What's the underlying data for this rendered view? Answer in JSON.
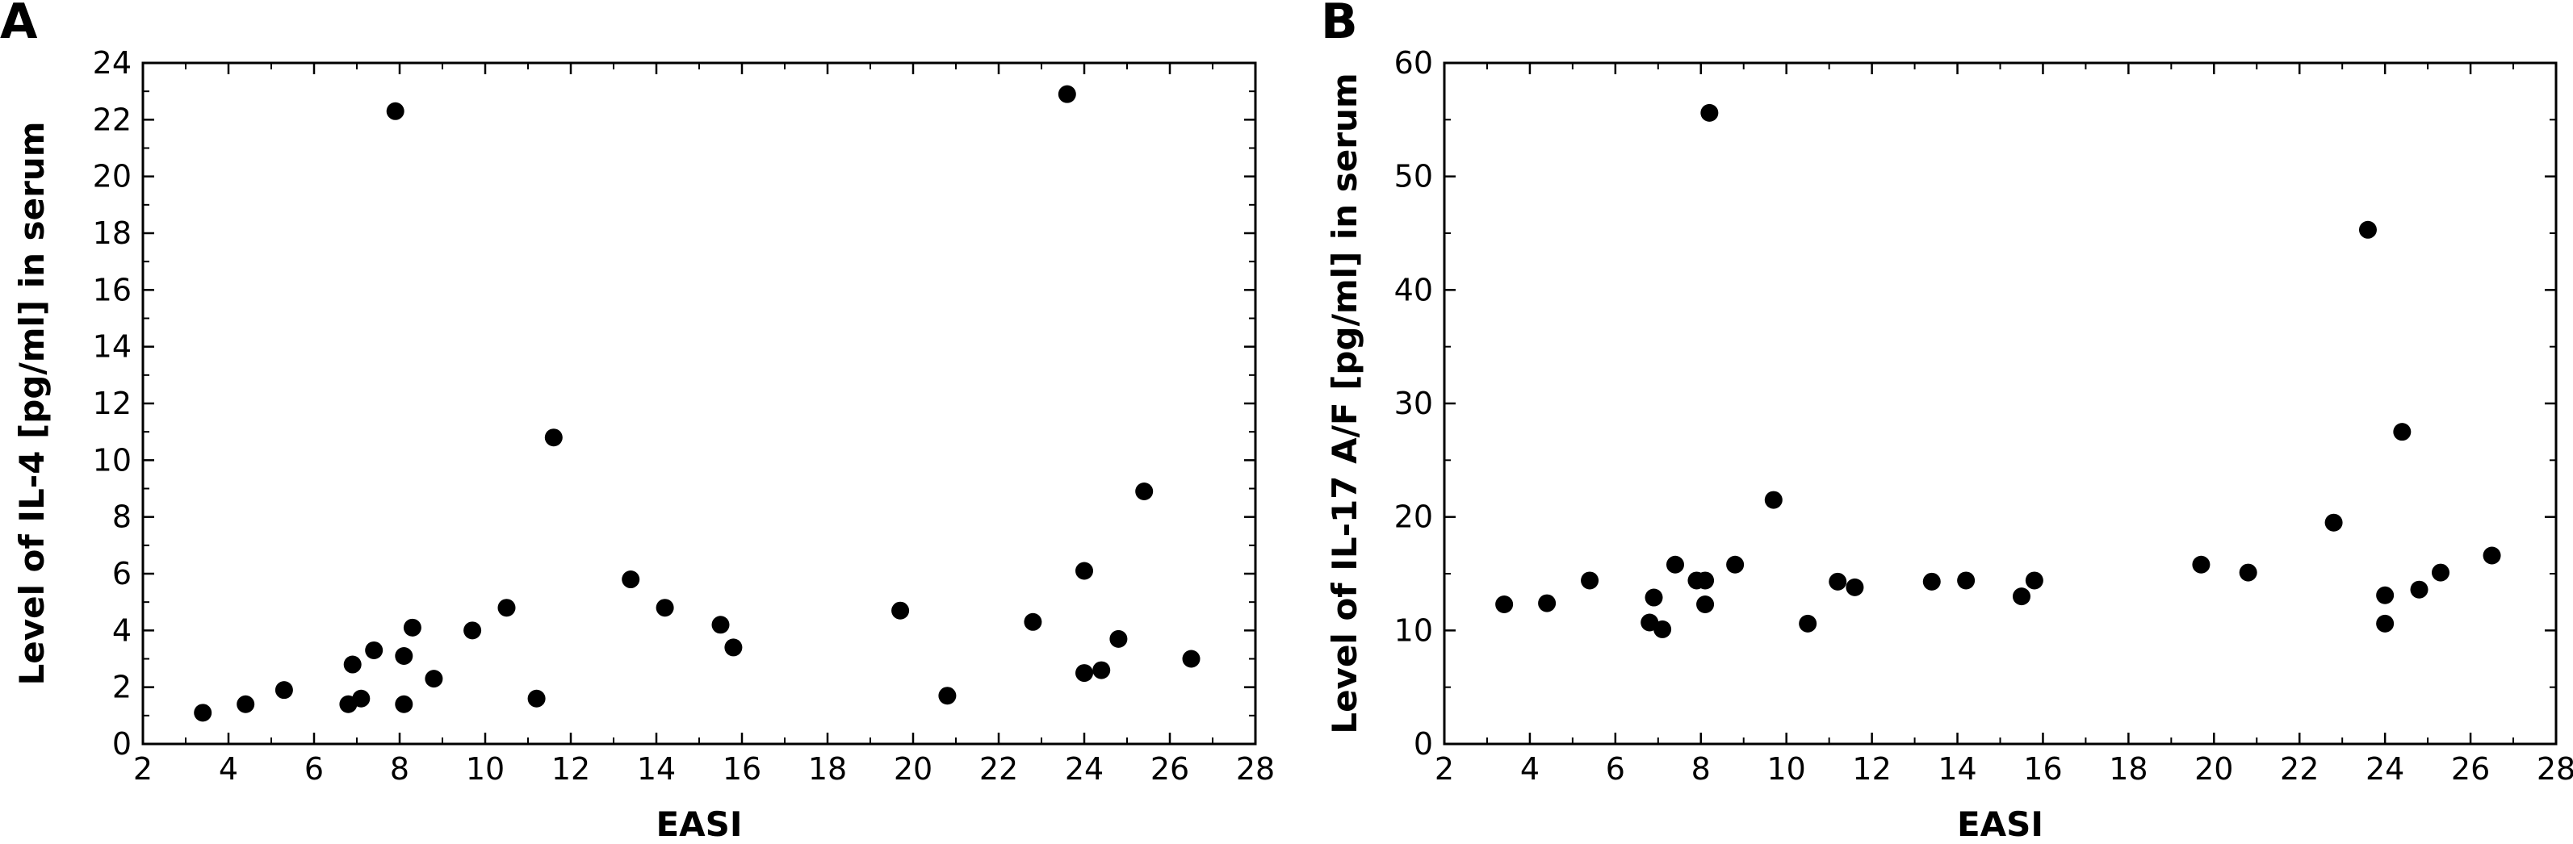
{
  "chart_data": [
    {
      "type": "scatter",
      "panel_label": "A",
      "xlabel": "EASI",
      "ylabel": "Level of IL-4 [pg/ml] in serum",
      "xlim": [
        2,
        28
      ],
      "ylim": [
        0,
        24
      ],
      "x_ticks": [
        "2",
        "4",
        "6",
        "8",
        "10",
        "12",
        "14",
        "16",
        "18",
        "20",
        "22",
        "24",
        "26",
        "28"
      ],
      "y_ticks": [
        "0",
        "2",
        "4",
        "6",
        "8",
        "10",
        "12",
        "14",
        "16",
        "18",
        "20",
        "22",
        "24"
      ],
      "grid": false,
      "marker_color": "#000000",
      "points": [
        {
          "x": 3.4,
          "y": 1.1
        },
        {
          "x": 4.4,
          "y": 1.4
        },
        {
          "x": 5.3,
          "y": 1.9
        },
        {
          "x": 6.8,
          "y": 1.4
        },
        {
          "x": 6.9,
          "y": 2.8
        },
        {
          "x": 7.1,
          "y": 1.6
        },
        {
          "x": 7.4,
          "y": 3.3
        },
        {
          "x": 7.9,
          "y": 22.3
        },
        {
          "x": 8.1,
          "y": 1.4
        },
        {
          "x": 8.1,
          "y": 3.1
        },
        {
          "x": 8.3,
          "y": 4.1
        },
        {
          "x": 8.8,
          "y": 2.3
        },
        {
          "x": 9.7,
          "y": 4.0
        },
        {
          "x": 10.5,
          "y": 4.8
        },
        {
          "x": 11.2,
          "y": 1.6
        },
        {
          "x": 11.6,
          "y": 10.8
        },
        {
          "x": 13.4,
          "y": 5.8
        },
        {
          "x": 14.2,
          "y": 4.8
        },
        {
          "x": 15.5,
          "y": 4.2
        },
        {
          "x": 15.8,
          "y": 3.4
        },
        {
          "x": 19.7,
          "y": 4.7
        },
        {
          "x": 20.8,
          "y": 1.7
        },
        {
          "x": 22.8,
          "y": 4.3
        },
        {
          "x": 23.6,
          "y": 22.9
        },
        {
          "x": 24.0,
          "y": 6.1
        },
        {
          "x": 24.0,
          "y": 2.5
        },
        {
          "x": 24.4,
          "y": 2.6
        },
        {
          "x": 24.8,
          "y": 3.7
        },
        {
          "x": 25.4,
          "y": 8.9
        },
        {
          "x": 26.5,
          "y": 3.0
        }
      ]
    },
    {
      "type": "scatter",
      "panel_label": "B",
      "xlabel": "EASI",
      "ylabel": "Level of IL-17 A/F [pg/ml] in serum",
      "xlim": [
        2,
        28
      ],
      "ylim": [
        0,
        60
      ],
      "x_ticks": [
        "2",
        "4",
        "6",
        "8",
        "10",
        "12",
        "14",
        "16",
        "18",
        "20",
        "22",
        "24",
        "26",
        "28"
      ],
      "y_ticks": [
        "0",
        "10",
        "20",
        "30",
        "40",
        "50",
        "60"
      ],
      "grid": false,
      "marker_color": "#000000",
      "points": [
        {
          "x": 3.4,
          "y": 12.3
        },
        {
          "x": 4.4,
          "y": 12.4
        },
        {
          "x": 5.4,
          "y": 14.4
        },
        {
          "x": 6.8,
          "y": 10.7
        },
        {
          "x": 6.9,
          "y": 12.9
        },
        {
          "x": 7.1,
          "y": 10.1
        },
        {
          "x": 7.4,
          "y": 15.8
        },
        {
          "x": 7.9,
          "y": 14.4
        },
        {
          "x": 8.1,
          "y": 12.3
        },
        {
          "x": 8.1,
          "y": 14.4
        },
        {
          "x": 8.2,
          "y": 55.6
        },
        {
          "x": 8.8,
          "y": 15.8
        },
        {
          "x": 9.7,
          "y": 21.5
        },
        {
          "x": 10.5,
          "y": 10.6
        },
        {
          "x": 11.2,
          "y": 14.3
        },
        {
          "x": 11.6,
          "y": 13.8
        },
        {
          "x": 13.4,
          "y": 14.3
        },
        {
          "x": 14.2,
          "y": 14.4
        },
        {
          "x": 15.5,
          "y": 13.0
        },
        {
          "x": 15.8,
          "y": 14.4
        },
        {
          "x": 19.7,
          "y": 15.8
        },
        {
          "x": 20.8,
          "y": 15.1
        },
        {
          "x": 22.8,
          "y": 19.5
        },
        {
          "x": 23.6,
          "y": 45.3
        },
        {
          "x": 24.0,
          "y": 13.1
        },
        {
          "x": 24.0,
          "y": 10.6
        },
        {
          "x": 24.4,
          "y": 27.5
        },
        {
          "x": 24.8,
          "y": 13.6
        },
        {
          "x": 25.3,
          "y": 15.1
        },
        {
          "x": 26.5,
          "y": 16.6
        }
      ]
    }
  ]
}
